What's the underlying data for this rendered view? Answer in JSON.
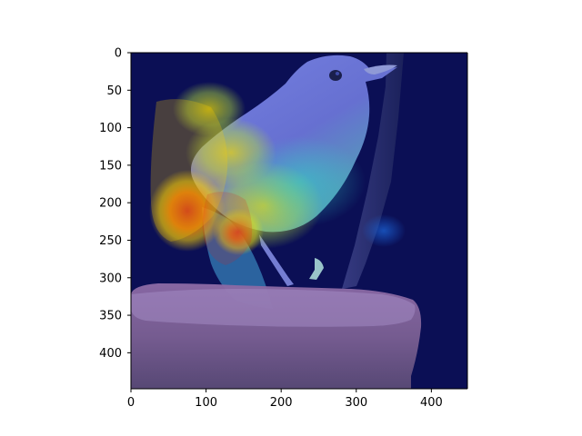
{
  "figure": {
    "image_subject": "bird-heatmap-overlay",
    "colormap": "jet",
    "background_color": "#ffffff",
    "axis_color": "#000000"
  },
  "axes": {
    "x": {
      "range": [
        0,
        448
      ],
      "ticks": [
        {
          "value": 0,
          "label": "0"
        },
        {
          "value": 100,
          "label": "100"
        },
        {
          "value": 200,
          "label": "200"
        },
        {
          "value": 300,
          "label": "300"
        },
        {
          "value": 400,
          "label": "400"
        }
      ]
    },
    "y": {
      "range": [
        0,
        448
      ],
      "inverted": true,
      "ticks": [
        {
          "value": 0,
          "label": "0"
        },
        {
          "value": 50,
          "label": "50"
        },
        {
          "value": 100,
          "label": "100"
        },
        {
          "value": 150,
          "label": "150"
        },
        {
          "value": 200,
          "label": "200"
        },
        {
          "value": 250,
          "label": "250"
        },
        {
          "value": 300,
          "label": "300"
        },
        {
          "value": 350,
          "label": "350"
        },
        {
          "value": 400,
          "label": "400"
        }
      ]
    }
  }
}
